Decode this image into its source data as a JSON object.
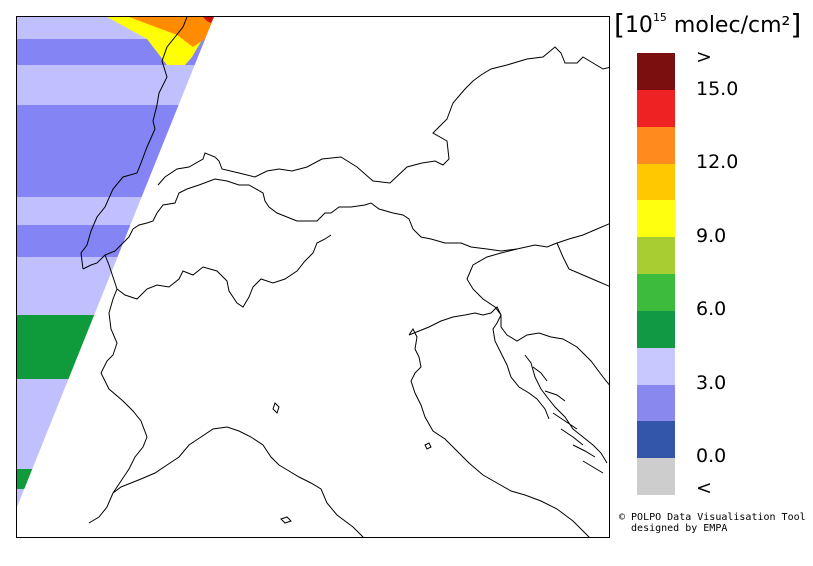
{
  "unit_label": {
    "open": "[",
    "prefix": "10",
    "exponent": "15",
    "suffix": " molec/cm²",
    "close": "]"
  },
  "colorbar": {
    "segments": [
      {
        "color": "#7b0f0f"
      },
      {
        "color": "#ee2222"
      },
      {
        "color": "#ff8a1e"
      },
      {
        "color": "#ffc800"
      },
      {
        "color": "#ffff10"
      },
      {
        "color": "#a8cd32"
      },
      {
        "color": "#3dbb3d"
      },
      {
        "color": "#119944"
      },
      {
        "color": "#c8c8ff"
      },
      {
        "color": "#8888ee"
      },
      {
        "color": "#3355aa"
      },
      {
        "color": "#cdcdcd"
      }
    ],
    "tick_labels": [
      ">",
      "15.0",
      "12.0",
      "9.0",
      "6.0",
      "3.0",
      "0.0",
      "<"
    ]
  },
  "swath_colors": {
    "light": "#c0c0ff",
    "medium": "#8484f4",
    "green": "#0f9a3c",
    "yellow": "#ffff00",
    "orange": "#ff8c00",
    "red": "#cc1100"
  },
  "credit": {
    "line1": "© POLPO Data Visualisation Tool",
    "line2": "  designed by EMPA"
  }
}
